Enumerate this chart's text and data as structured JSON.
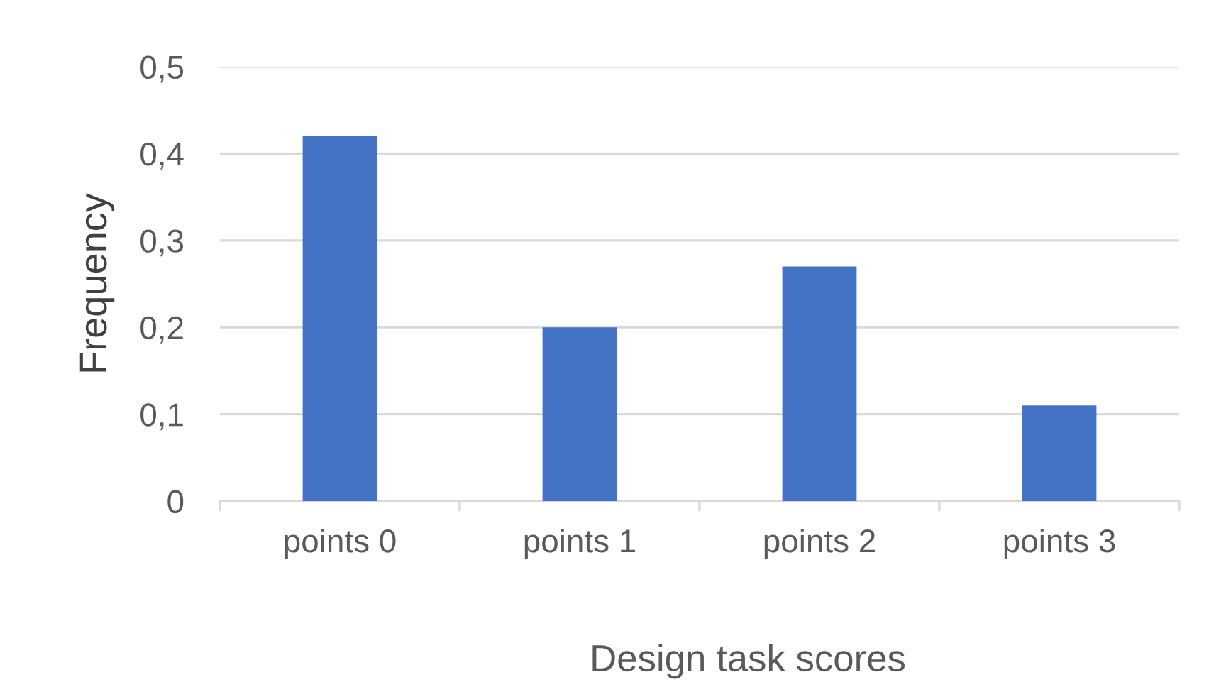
{
  "chart_data": {
    "type": "bar",
    "xlabel": "Design task scores",
    "ylabel": "Frequency",
    "categories": [
      "points 0",
      "points 1",
      "points 2",
      "points 3"
    ],
    "values": [
      0.42,
      0.2,
      0.27,
      0.11
    ],
    "color": "#4472c4",
    "ylim": [
      0,
      0.5
    ],
    "yticks": [
      0,
      {
        "value": 0.1,
        "label": "0,1"
      },
      {
        "value": 0.2,
        "label": "0,2"
      },
      {
        "value": 0.3,
        "label": "0,3"
      },
      {
        "value": 0.4,
        "label": "0,4"
      },
      {
        "value": 0.5,
        "label": "0,5"
      }
    ],
    "grid": "y",
    "legend": false
  }
}
